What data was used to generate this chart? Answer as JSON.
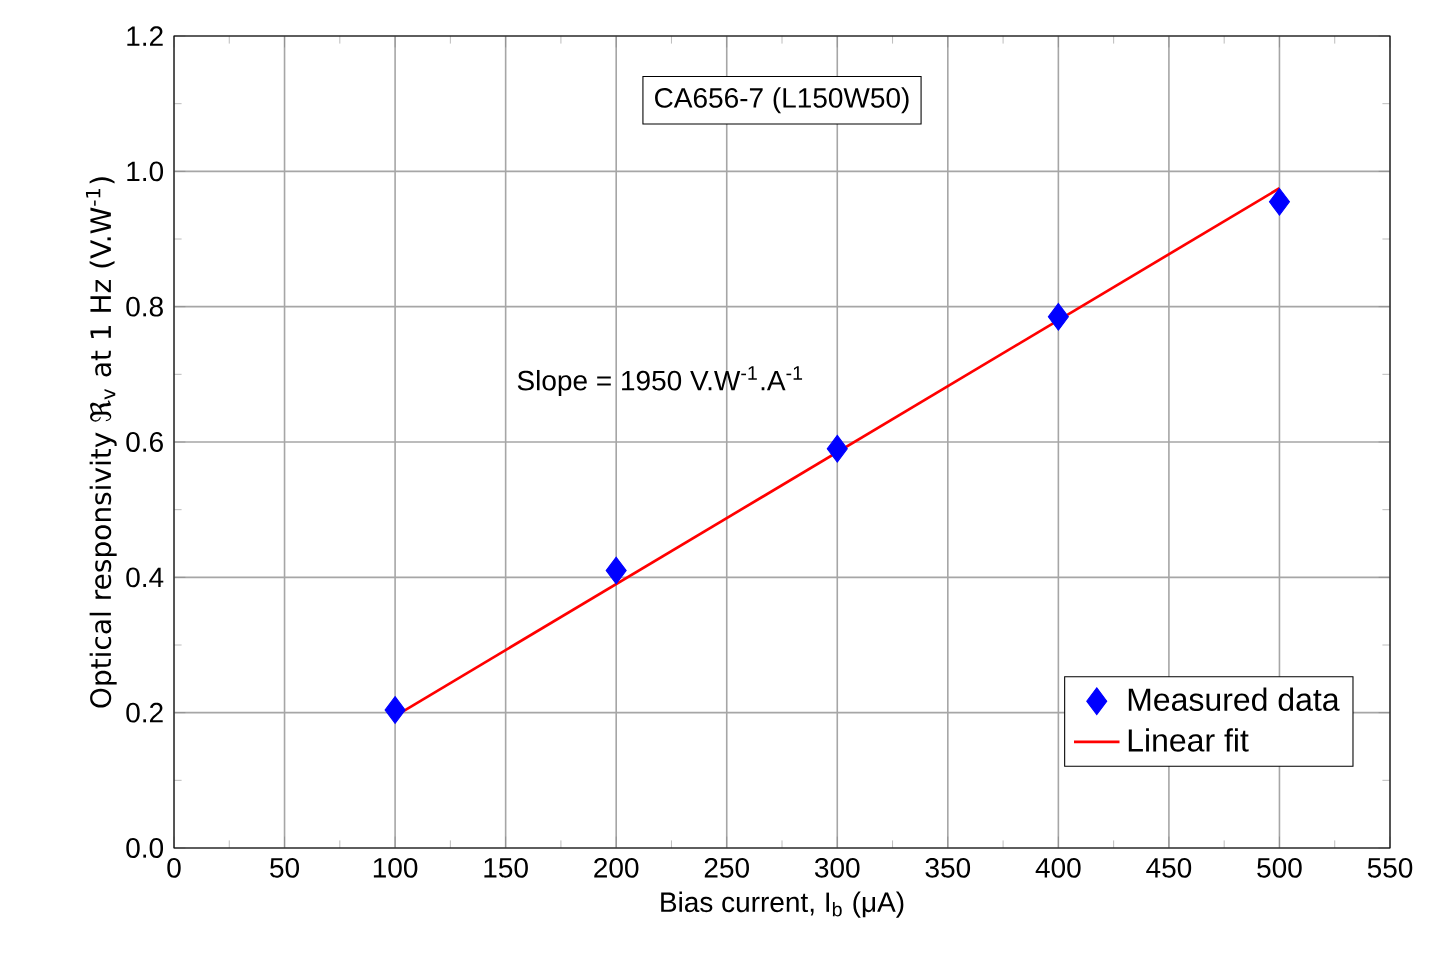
{
  "chart_data": {
    "type": "scatter",
    "xlabel": "Bias current, I$_{b}$ (μA)",
    "ylabel": "Optical responsivity ℜ$_{v}$ at 1 Hz (V.W$^{-1}$)",
    "annotations": [
      "CA656-7 (L150W50)",
      "Slope = 1950 V.W$^{-1}$.A$^{-1}$"
    ],
    "series": [
      {
        "name": "Measured data",
        "color": "#0000ff",
        "marker": "diamond",
        "x": [
          100,
          200,
          300,
          400,
          500
        ],
        "values": [
          0.204,
          0.41,
          0.59,
          0.785,
          0.955
        ]
      },
      {
        "name": "Linear fit",
        "type": "line",
        "color": "#ff0000",
        "marker": "none",
        "x": [
          100,
          500
        ],
        "values": [
          0.195,
          0.975
        ]
      }
    ],
    "xlim": [
      0,
      550
    ],
    "xticks": [
      0,
      50,
      100,
      150,
      200,
      250,
      300,
      350,
      400,
      450,
      500,
      550
    ],
    "ylim": [
      0,
      1.2
    ],
    "yticks": [
      {
        "value": 0,
        "label": "0.0"
      },
      {
        "value": 0.2,
        "label": "0.2"
      },
      {
        "value": 0.4,
        "label": "0.4"
      },
      {
        "value": 0.6,
        "label": "0.6"
      },
      {
        "value": 0.8,
        "label": "0.8"
      },
      {
        "value": 1.0,
        "label": "1.0"
      },
      {
        "value": 1.2,
        "label": "1.2"
      }
    ],
    "grid": true,
    "legend": "bottom right"
  }
}
